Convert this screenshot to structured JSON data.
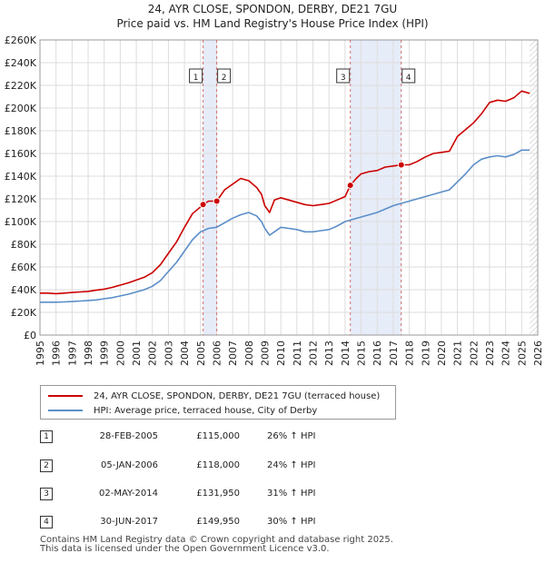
{
  "chart_data": {
    "type": "line",
    "title": "24, AYR CLOSE, SPONDON, DERBY, DE21 7GU",
    "subtitle": "Price paid vs. HM Land Registry's House Price Index (HPI)",
    "xlim": [
      1995,
      2026
    ],
    "ylim": [
      0,
      260000
    ],
    "x_ticks": [
      "1995",
      "1996",
      "1997",
      "1998",
      "1999",
      "2000",
      "2001",
      "2002",
      "2003",
      "2004",
      "2005",
      "2006",
      "2007",
      "2008",
      "2009",
      "2010",
      "2011",
      "2012",
      "2013",
      "2014",
      "2015",
      "2016",
      "2017",
      "2018",
      "2019",
      "2020",
      "2021",
      "2022",
      "2023",
      "2024",
      "2025",
      "2026"
    ],
    "y_ticks": [
      "£0",
      "£20K",
      "£40K",
      "£60K",
      "£80K",
      "£100K",
      "£120K",
      "£140K",
      "£160K",
      "£180K",
      "£200K",
      "£220K",
      "£240K",
      "£260K"
    ],
    "y_tick_values": [
      0,
      20000,
      40000,
      60000,
      80000,
      100000,
      120000,
      140000,
      160000,
      180000,
      200000,
      220000,
      240000,
      260000
    ],
    "grid": true,
    "shaded_periods": [
      [
        2005.16,
        2006.01
      ],
      [
        2014.33,
        2017.5
      ]
    ],
    "future_hatch_from": 2025.5,
    "series": [
      {
        "name": "24, AYR CLOSE, SPONDON, DERBY, DE21 7GU (terraced house)",
        "color": "#cc0000",
        "x": [
          1995.0,
          1995.5,
          1996.0,
          1996.5,
          1997.0,
          1997.5,
          1998.0,
          1998.5,
          1999.0,
          1999.5,
          2000.0,
          2000.5,
          2001.0,
          2001.5,
          2002.0,
          2002.5,
          2003.0,
          2003.5,
          2004.0,
          2004.5,
          2005.0,
          2005.16,
          2005.5,
          2006.01,
          2006.5,
          2007.0,
          2007.5,
          2008.0,
          2008.5,
          2008.8,
          2009.0,
          2009.3,
          2009.6,
          2010.0,
          2010.5,
          2011.0,
          2011.5,
          2012.0,
          2012.5,
          2013.0,
          2013.5,
          2014.0,
          2014.33,
          2014.7,
          2015.0,
          2015.5,
          2016.0,
          2016.5,
          2017.0,
          2017.5,
          2018.0,
          2018.5,
          2019.0,
          2019.5,
          2020.0,
          2020.5,
          2021.0,
          2021.5,
          2022.0,
          2022.5,
          2023.0,
          2023.5,
          2024.0,
          2024.5,
          2025.0,
          2025.5
        ],
        "values": [
          37000,
          37000,
          36500,
          37000,
          37500,
          38000,
          38500,
          39500,
          40500,
          42000,
          44000,
          46000,
          48500,
          51000,
          55000,
          62000,
          72000,
          82000,
          95000,
          107000,
          113000,
          115000,
          118000,
          118000,
          128000,
          133000,
          138000,
          136000,
          130000,
          124000,
          114000,
          108000,
          119000,
          121000,
          119000,
          117000,
          115000,
          114000,
          115000,
          116000,
          119000,
          122000,
          131950,
          138000,
          142000,
          144000,
          145000,
          148000,
          149000,
          149950,
          150000,
          153000,
          157000,
          160000,
          161000,
          162000,
          175000,
          181000,
          187000,
          195000,
          205000,
          207000,
          206000,
          209000,
          215000,
          213000
        ]
      },
      {
        "name": "HPI: Average price, terraced house, City of Derby",
        "color": "#5b8ec9",
        "x": [
          1995.0,
          1995.5,
          1996.0,
          1996.5,
          1997.0,
          1997.5,
          1998.0,
          1998.5,
          1999.0,
          1999.5,
          2000.0,
          2000.5,
          2001.0,
          2001.5,
          2002.0,
          2002.5,
          2003.0,
          2003.5,
          2004.0,
          2004.5,
          2005.0,
          2005.5,
          2006.0,
          2006.5,
          2007.0,
          2007.5,
          2008.0,
          2008.5,
          2008.8,
          2009.0,
          2009.3,
          2009.6,
          2010.0,
          2010.5,
          2011.0,
          2011.5,
          2012.0,
          2012.5,
          2013.0,
          2013.5,
          2014.0,
          2014.5,
          2015.0,
          2015.5,
          2016.0,
          2016.5,
          2017.0,
          2017.5,
          2018.0,
          2018.5,
          2019.0,
          2019.5,
          2020.0,
          2020.5,
          2021.0,
          2021.5,
          2022.0,
          2022.5,
          2023.0,
          2023.5,
          2024.0,
          2024.5,
          2025.0,
          2025.5
        ],
        "values": [
          29000,
          29000,
          29000,
          29200,
          29500,
          30000,
          30500,
          31000,
          32000,
          33000,
          34500,
          36000,
          38000,
          40000,
          43000,
          48000,
          56000,
          64000,
          74000,
          84000,
          91000,
          94000,
          95000,
          99000,
          103000,
          106000,
          108000,
          105000,
          100000,
          94000,
          88000,
          91000,
          95000,
          94000,
          93000,
          91000,
          91000,
          92000,
          93000,
          96000,
          100000,
          102000,
          104000,
          106000,
          108000,
          111000,
          114000,
          116000,
          118000,
          120000,
          122000,
          124000,
          126000,
          128000,
          135000,
          142000,
          150000,
          155000,
          157000,
          158000,
          157000,
          159000,
          163000,
          163000
        ]
      }
    ],
    "sale_markers": [
      {
        "num": "1",
        "x": 2005.16,
        "value": 115000
      },
      {
        "num": "2",
        "x": 2006.01,
        "value": 118000
      },
      {
        "num": "3",
        "x": 2014.33,
        "value": 131950
      },
      {
        "num": "4",
        "x": 2017.5,
        "value": 149950
      }
    ]
  },
  "legend": {
    "property_label": "24, AYR CLOSE, SPONDON, DERBY, DE21 7GU (terraced house)",
    "hpi_label": "HPI: Average price, terraced house, City of Derby",
    "property_color": "#cc0000",
    "hpi_color": "#5b8ec9"
  },
  "sales": [
    {
      "num": "1",
      "date": "28-FEB-2005",
      "price": "£115,000",
      "hpi": "26% ↑ HPI"
    },
    {
      "num": "2",
      "date": "05-JAN-2006",
      "price": "£118,000",
      "hpi": "24% ↑ HPI"
    },
    {
      "num": "3",
      "date": "02-MAY-2014",
      "price": "£131,950",
      "hpi": "31% ↑ HPI"
    },
    {
      "num": "4",
      "date": "30-JUN-2017",
      "price": "£149,950",
      "hpi": "30% ↑ HPI"
    }
  ],
  "footer": {
    "line1": "Contains HM Land Registry data © Crown copyright and database right 2025.",
    "line2": "This data is licensed under the Open Government Licence v3.0."
  }
}
